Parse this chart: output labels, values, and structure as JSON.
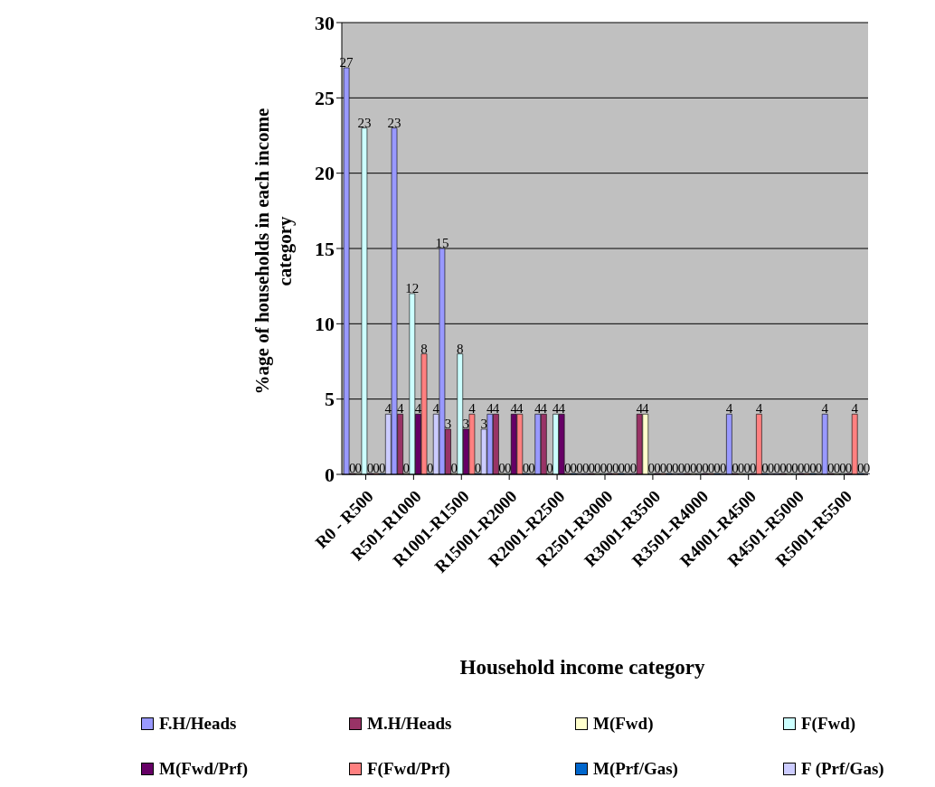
{
  "chart_data": {
    "type": "bar",
    "xlabel": "Household income category",
    "ylabel": "%age of households in each income category",
    "categories": [
      "R0 -  R500",
      "R501-R1000",
      "R1001-R1500",
      "R15001-R2000",
      "R2001-R2500",
      "R2501-R3000",
      "R3001-R3500",
      "R3501-R4000",
      "R4001-R4500",
      "R4501-R5000",
      "R5001-R5500"
    ],
    "series": [
      {
        "name": "F.H/Heads",
        "color": "#9999ff",
        "values": [
          27,
          23,
          15,
          4,
          4,
          0,
          0,
          0,
          4,
          0,
          4
        ]
      },
      {
        "name": "M.H/Heads",
        "color": "#993366",
        "values": [
          0,
          4,
          3,
          4,
          4,
          0,
          4,
          0,
          0,
          0,
          0
        ]
      },
      {
        "name": "M(Fwd)",
        "color": "#ffffcc",
        "values": [
          0,
          0,
          0,
          0,
          0,
          0,
          4,
          0,
          0,
          0,
          0
        ]
      },
      {
        "name": "F(Fwd)",
        "color": "#ccffff",
        "values": [
          23,
          12,
          8,
          0,
          4,
          0,
          0,
          0,
          0,
          0,
          0
        ]
      },
      {
        "name": "M(Fwd/Prf)",
        "color": "#660066",
        "values": [
          0,
          4,
          3,
          4,
          4,
          0,
          0,
          0,
          0,
          0,
          0
        ]
      },
      {
        "name": "F(Fwd/Prf)",
        "color": "#ff8080",
        "values": [
          0,
          8,
          4,
          4,
          0,
          0,
          0,
          0,
          4,
          0,
          4
        ]
      },
      {
        "name": "M(Prf/Gas)",
        "color": "#0066cc",
        "values": [
          0,
          0,
          0,
          0,
          0,
          0,
          0,
          0,
          0,
          0,
          0
        ]
      },
      {
        "name": "F (Prf/Gas)",
        "color": "#ccccff",
        "values": [
          4,
          4,
          3,
          0,
          0,
          0,
          0,
          0,
          0,
          0,
          0
        ]
      }
    ],
    "ylim": [
      0,
      30
    ],
    "yticks": [
      0,
      5,
      10,
      15,
      20,
      25,
      30
    ],
    "grid": "y",
    "legend": "bottom",
    "data_labels": true
  }
}
